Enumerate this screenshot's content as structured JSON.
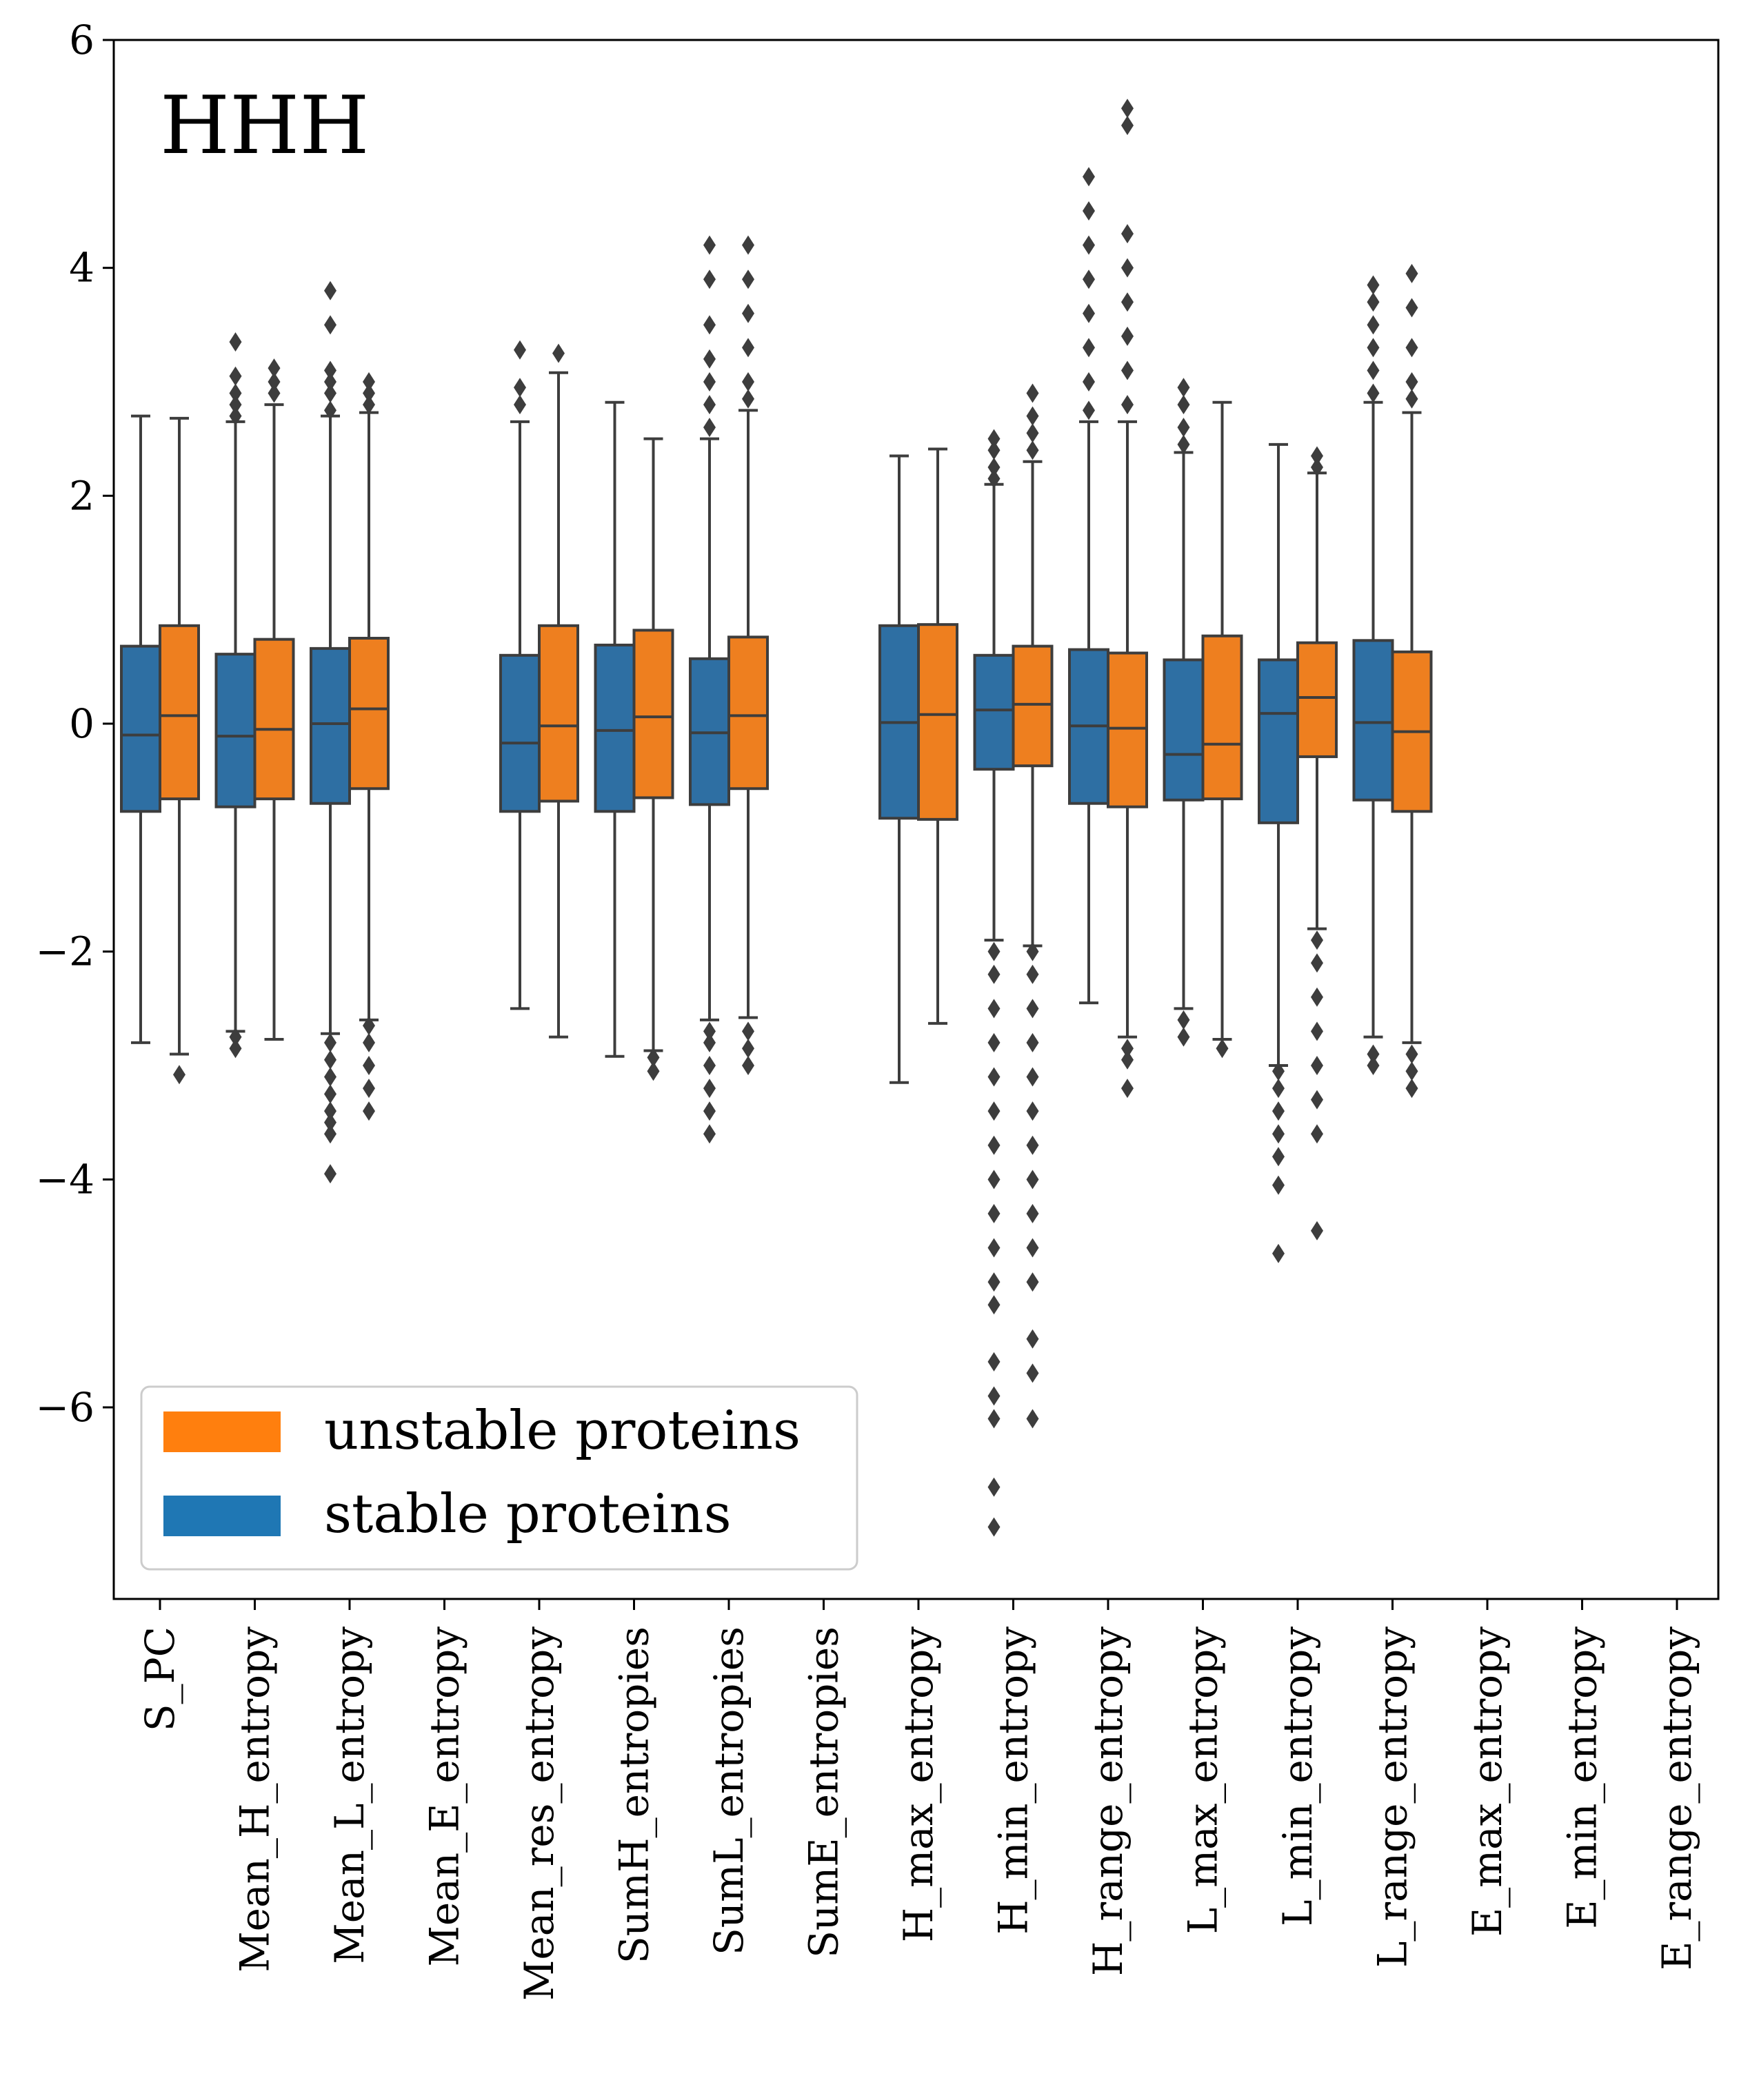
{
  "chart_data": {
    "type": "box",
    "panel_label": "HHH",
    "title": "",
    "xlabel": "",
    "ylabel": "",
    "ylim": [
      -7.7,
      6.0
    ],
    "yticks": [
      6,
      4,
      2,
      0,
      -2,
      -4,
      -6
    ],
    "ytick_labels": [
      "6",
      "4",
      "2",
      "0",
      "−2",
      "−4",
      "−6"
    ],
    "grid": false,
    "legend_position": "lower-left",
    "categories": [
      "S_PC",
      "Mean_H_entropy",
      "Mean_L_entropy",
      "Mean_E_entropy",
      "Mean_res_entropy",
      "SumH_entropies",
      "SumL_entropies",
      "SumE_entropies",
      "H_max_entropy",
      "H_min_entropy",
      "H_range_entropy",
      "L_max_entropy",
      "L_min_entropy",
      "L_range_entropy",
      "E_max_entropy",
      "E_min_entropy",
      "E_range_entropy"
    ],
    "series": [
      {
        "name": "stable proteins",
        "color": "#2e6fa3",
        "boxes": [
          {
            "q1": -0.77,
            "median": -0.1,
            "q3": 0.68,
            "whislo": -2.8,
            "whishi": 2.7,
            "fliers": []
          },
          {
            "q1": -0.73,
            "median": -0.11,
            "q3": 0.61,
            "whislo": -2.7,
            "whishi": 2.65,
            "fliers": [
              -2.85,
              -2.75,
              2.7,
              2.8,
              2.9,
              3.05,
              3.35
            ]
          },
          {
            "q1": -0.7,
            "median": 0.0,
            "q3": 0.66,
            "whislo": -2.72,
            "whishi": 2.7,
            "fliers": [
              -3.95,
              -3.6,
              -3.5,
              -3.4,
              -3.25,
              -3.1,
              -2.95,
              -2.8,
              2.75,
              2.9,
              3.0,
              3.1,
              3.5,
              3.8
            ]
          },
          null,
          {
            "q1": -0.77,
            "median": -0.17,
            "q3": 0.6,
            "whislo": -2.5,
            "whishi": 2.65,
            "fliers": [
              2.8,
              2.95,
              3.28
            ]
          },
          {
            "q1": -0.77,
            "median": -0.06,
            "q3": 0.69,
            "whislo": -2.92,
            "whishi": 2.82,
            "fliers": []
          },
          {
            "q1": -0.71,
            "median": -0.08,
            "q3": 0.57,
            "whislo": -2.6,
            "whishi": 2.5,
            "fliers": [
              -3.6,
              -3.4,
              -3.2,
              -3.0,
              -2.8,
              -2.7,
              2.6,
              2.8,
              3.0,
              3.2,
              3.5,
              3.9,
              4.2
            ]
          },
          null,
          {
            "q1": -0.83,
            "median": 0.01,
            "q3": 0.86,
            "whislo": -3.15,
            "whishi": 2.35,
            "fliers": []
          },
          {
            "q1": -0.4,
            "median": 0.12,
            "q3": 0.6,
            "whislo": -1.9,
            "whishi": 2.1,
            "fliers": [
              -7.05,
              -6.7,
              -6.1,
              -5.9,
              -5.6,
              -5.1,
              -4.9,
              -4.6,
              -4.3,
              -4.0,
              -3.7,
              -3.4,
              -3.1,
              -2.8,
              -2.5,
              -2.2,
              -2.0,
              2.15,
              2.25,
              2.4,
              2.5
            ]
          },
          {
            "q1": -0.7,
            "median": -0.02,
            "q3": 0.65,
            "whislo": -2.45,
            "whishi": 2.65,
            "fliers": [
              2.75,
              3.0,
              3.3,
              3.6,
              3.9,
              4.2,
              4.5,
              4.8
            ]
          },
          {
            "q1": -0.67,
            "median": -0.27,
            "q3": 0.56,
            "whislo": -2.5,
            "whishi": 2.38,
            "fliers": [
              -2.75,
              -2.6,
              2.45,
              2.6,
              2.8,
              2.95
            ]
          },
          {
            "q1": -0.87,
            "median": 0.09,
            "q3": 0.56,
            "whislo": -3.0,
            "whishi": 2.45,
            "fliers": [
              -4.65,
              -4.05,
              -3.8,
              -3.6,
              -3.4,
              -3.2,
              -3.05
            ]
          },
          {
            "q1": -0.67,
            "median": 0.01,
            "q3": 0.73,
            "whislo": -2.75,
            "whishi": 2.82,
            "fliers": [
              -3.0,
              -2.9,
              2.9,
              3.1,
              3.3,
              3.5,
              3.7,
              3.85
            ]
          },
          null,
          null,
          null
        ]
      },
      {
        "name": "unstable proteins",
        "color": "#ee7f1f",
        "boxes": [
          {
            "q1": -0.66,
            "median": 0.07,
            "q3": 0.86,
            "whislo": -2.9,
            "whishi": 2.68,
            "fliers": [
              -3.08
            ]
          },
          {
            "q1": -0.66,
            "median": -0.05,
            "q3": 0.74,
            "whislo": -2.77,
            "whishi": 2.8,
            "fliers": [
              2.9,
              3.0,
              3.12
            ]
          },
          {
            "q1": -0.57,
            "median": 0.13,
            "q3": 0.75,
            "whislo": -2.6,
            "whishi": 2.73,
            "fliers": [
              -3.4,
              -3.2,
              -3.0,
              -2.8,
              -2.65,
              2.8,
              2.9,
              3.0
            ]
          },
          null,
          {
            "q1": -0.68,
            "median": -0.02,
            "q3": 0.86,
            "whislo": -2.75,
            "whishi": 3.08,
            "fliers": [
              3.25
            ]
          },
          {
            "q1": -0.65,
            "median": 0.06,
            "q3": 0.82,
            "whislo": -2.87,
            "whishi": 2.5,
            "fliers": [
              -3.05,
              -2.93
            ]
          },
          {
            "q1": -0.57,
            "median": 0.07,
            "q3": 0.76,
            "whislo": -2.58,
            "whishi": 2.75,
            "fliers": [
              -3.0,
              -2.85,
              -2.7,
              2.85,
              3.0,
              3.3,
              3.6,
              3.9,
              4.2
            ]
          },
          null,
          {
            "q1": -0.84,
            "median": 0.08,
            "q3": 0.87,
            "whislo": -2.63,
            "whishi": 2.41,
            "fliers": []
          },
          {
            "q1": -0.37,
            "median": 0.17,
            "q3": 0.68,
            "whislo": -1.95,
            "whishi": 2.3,
            "fliers": [
              -6.1,
              -5.7,
              -5.4,
              -4.9,
              -4.6,
              -4.3,
              -4.0,
              -3.7,
              -3.4,
              -3.1,
              -2.8,
              -2.5,
              -2.2,
              -2.0,
              2.4,
              2.55,
              2.7,
              2.9
            ]
          },
          {
            "q1": -0.73,
            "median": -0.04,
            "q3": 0.62,
            "whislo": -2.75,
            "whishi": 2.65,
            "fliers": [
              -3.2,
              -2.95,
              -2.85,
              2.8,
              3.1,
              3.4,
              3.7,
              4.0,
              4.3,
              5.25,
              5.4
            ]
          },
          {
            "q1": -0.66,
            "median": -0.18,
            "q3": 0.77,
            "whislo": -2.77,
            "whishi": 2.82,
            "fliers": [
              -2.85
            ]
          },
          {
            "q1": -0.29,
            "median": 0.23,
            "q3": 0.71,
            "whislo": -1.8,
            "whishi": 2.2,
            "fliers": [
              -4.45,
              -3.6,
              -3.3,
              -3.0,
              -2.7,
              -2.4,
              -2.1,
              -1.9,
              2.25,
              2.35
            ]
          },
          {
            "q1": -0.77,
            "median": -0.07,
            "q3": 0.63,
            "whislo": -2.8,
            "whishi": 2.73,
            "fliers": [
              -3.2,
              -3.05,
              -2.9,
              2.85,
              3.0,
              3.3,
              3.65,
              3.95
            ]
          },
          null,
          null,
          null
        ]
      }
    ],
    "legend": [
      {
        "label": "unstable proteins",
        "color": "#ff7f0e"
      },
      {
        "label": "stable proteins",
        "color": "#1f77b4"
      }
    ]
  }
}
